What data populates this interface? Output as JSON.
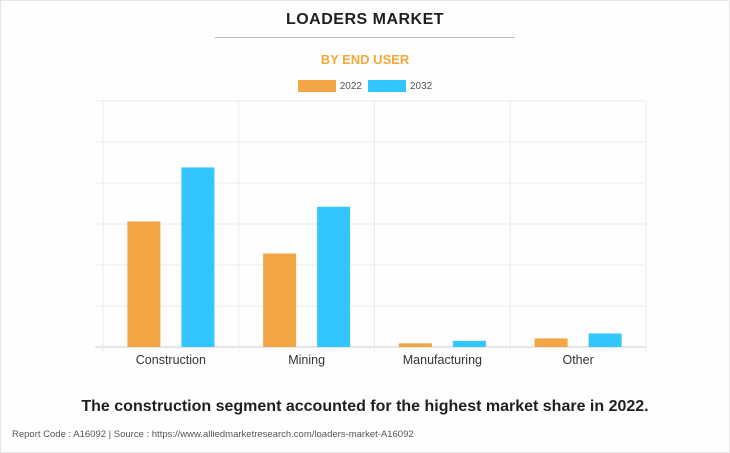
{
  "header": {
    "title": "LOADERS MARKET",
    "subtitle": "BY END USER"
  },
  "colors": {
    "series_2022": "#f4a646",
    "series_2032": "#33c5fd",
    "subtitle": "#f4a83a"
  },
  "chart_data": {
    "type": "bar",
    "title": "LOADERS MARKET",
    "subtitle": "BY END USER",
    "xlabel": "",
    "ylabel": "",
    "categories": [
      "Construction",
      "Mining",
      "Manufacturing",
      "Other"
    ],
    "series": [
      {
        "name": "2022",
        "values": [
          5.1,
          3.8,
          0.15,
          0.35
        ]
      },
      {
        "name": "2032",
        "values": [
          7.3,
          5.7,
          0.25,
          0.55
        ]
      }
    ],
    "ylim": [
      0,
      10
    ],
    "y_axis_labels": false,
    "grid": true,
    "legend": "top-center"
  },
  "conclusion": "The construction segment accounted for the highest market share in 2022.",
  "footer": {
    "text": "Report Code : A16092  |  Source : https://www.alliedmarketresearch.com/loaders-market-A16092"
  }
}
